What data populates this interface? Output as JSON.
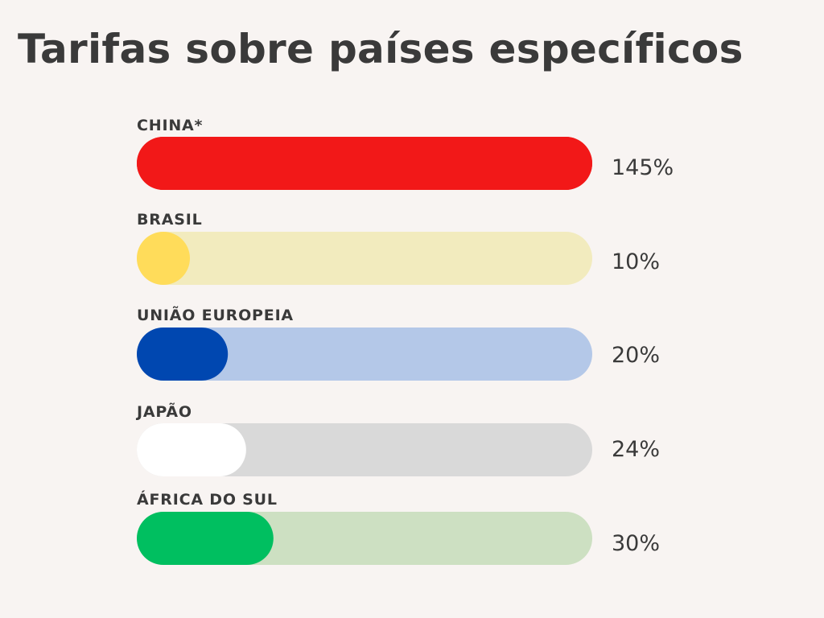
{
  "title": "Tarifas sobre países específicos",
  "chart_data": {
    "type": "bar",
    "orientation": "horizontal",
    "title": "Tarifas sobre países específicos",
    "categories": [
      "CHINA*",
      "BRASIL",
      "UNIÃO EUROPEIA",
      "JAPÃO",
      "ÁFRICA DO SUL"
    ],
    "values": [
      145,
      10,
      20,
      24,
      30
    ],
    "value_labels": [
      "145%",
      "10%",
      "20%",
      "24%",
      "30%"
    ],
    "xlim": [
      0,
      145
    ],
    "grid": false,
    "legend": "none",
    "colors": {
      "fill": [
        "#f21818",
        "#ffdc5a",
        "#0047b0",
        "#ffffff",
        "#00bf60"
      ],
      "track": [
        "#f21818",
        "#f2ebbe",
        "#b4c8e8",
        "#d9d9d9",
        "#cde0c2"
      ]
    }
  }
}
